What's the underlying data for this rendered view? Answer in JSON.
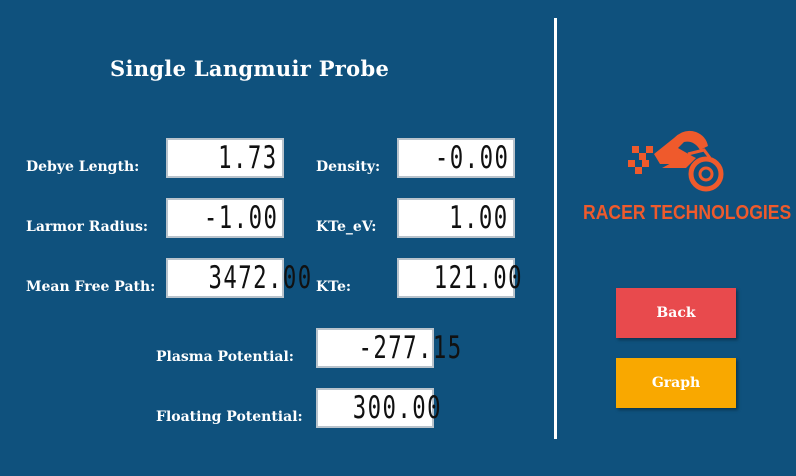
{
  "title": "Single Langmuir Probe",
  "fields": {
    "debye_length": {
      "label": "Debye Length:",
      "value": "1.73"
    },
    "density": {
      "label": "Density:",
      "value": "-0.00"
    },
    "larmor_radius": {
      "label": "Larmor Radius:",
      "value": "-1.00"
    },
    "kte_ev": {
      "label": "KTe_eV:",
      "value": "1.00"
    },
    "mean_free_path": {
      "label": "Mean Free Path:",
      "value": "3472.00"
    },
    "kte": {
      "label": "KTe:",
      "value": "121.00"
    },
    "plasma_potential": {
      "label": "Plasma Potential:",
      "value": "-277.15"
    },
    "floating_potential": {
      "label": "Floating Potential:",
      "value": "300.00"
    }
  },
  "logo": {
    "text": "RACER TECHNOLOGIES",
    "color": "#ef5a2c"
  },
  "buttons": {
    "back": {
      "label": "Back",
      "color": "#e84a4d"
    },
    "graph": {
      "label": "Graph",
      "color": "#f9a800"
    }
  },
  "colors": {
    "background": "#0f517d",
    "divider": "#ffffff"
  }
}
